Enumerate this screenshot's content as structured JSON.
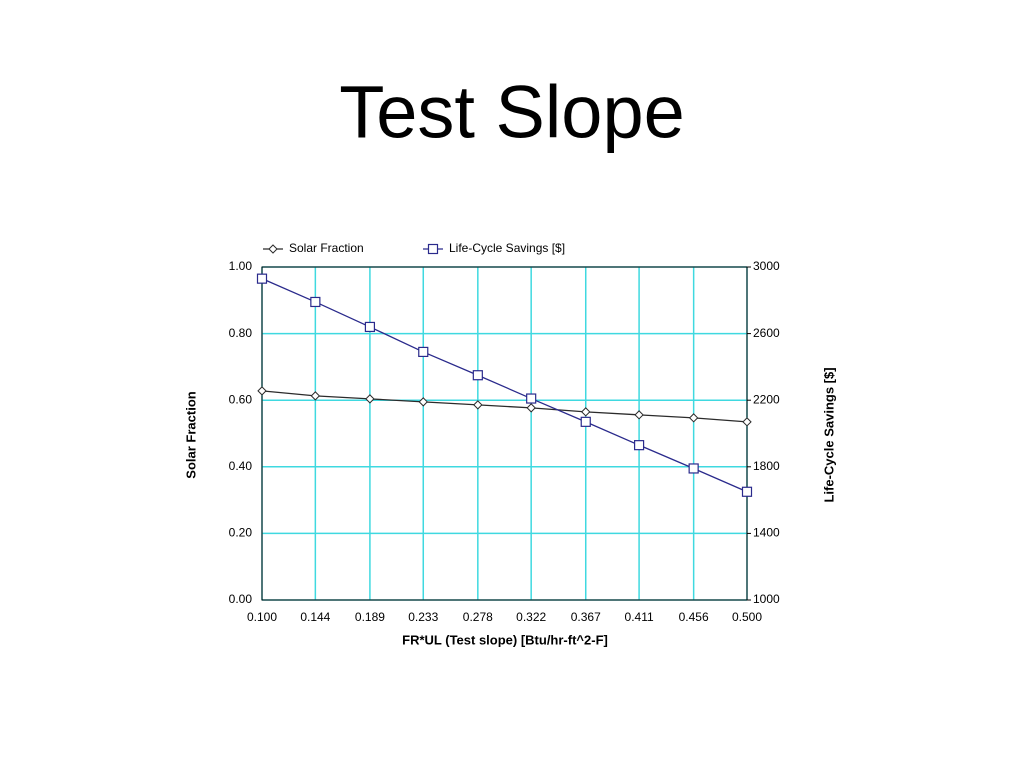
{
  "slide_title": "Test Slope",
  "chart_data": {
    "type": "line",
    "x_label": "FR*UL (Test slope) [Btu/hr-ft^2-F]",
    "y_label": "Solar Fraction",
    "y2_label": "Life-Cycle Savings [$]",
    "x": [
      0.1,
      0.144,
      0.189,
      0.233,
      0.278,
      0.322,
      0.367,
      0.411,
      0.456,
      0.5
    ],
    "xlim": [
      0.1,
      0.5
    ],
    "xticks": [
      {
        "value": 0.1,
        "label": "0.100"
      },
      {
        "value": 0.144,
        "label": "0.144"
      },
      {
        "value": 0.189,
        "label": "0.189"
      },
      {
        "value": 0.233,
        "label": "0.233"
      },
      {
        "value": 0.278,
        "label": "0.278"
      },
      {
        "value": 0.322,
        "label": "0.322"
      },
      {
        "value": 0.367,
        "label": "0.367"
      },
      {
        "value": 0.411,
        "label": "0.411"
      },
      {
        "value": 0.456,
        "label": "0.456"
      },
      {
        "value": 0.5,
        "label": "0.500"
      }
    ],
    "ylim": [
      0,
      1
    ],
    "yticks": [
      {
        "value": 0,
        "label": "0.00"
      },
      {
        "value": 0.2,
        "label": "0.20"
      },
      {
        "value": 0.4,
        "label": "0.40"
      },
      {
        "value": 0.6,
        "label": "0.60"
      },
      {
        "value": 0.8,
        "label": "0.80"
      },
      {
        "value": 1,
        "label": "1.00"
      }
    ],
    "y2lim": [
      1000,
      3000
    ],
    "y2ticks": [
      1000,
      1400,
      1800,
      2200,
      2600,
      3000
    ],
    "grid": true,
    "grid_color": "#3fd9e0",
    "legend": "top",
    "series": [
      {
        "name": "Solar Fraction",
        "color": "#2b2b2b",
        "marker": "diamond",
        "values": [
          0.628,
          0.613,
          0.604,
          0.595,
          0.586,
          0.577,
          0.565,
          0.556,
          0.547,
          0.535
        ]
      },
      {
        "name": "Life-Cycle Savings [$]",
        "color": "#2a2a8c",
        "marker": "square",
        "axis": "y2",
        "values": [
          2930,
          2790,
          2640,
          2490,
          2350,
          2210,
          2070,
          1930,
          1790,
          1650
        ]
      }
    ]
  }
}
